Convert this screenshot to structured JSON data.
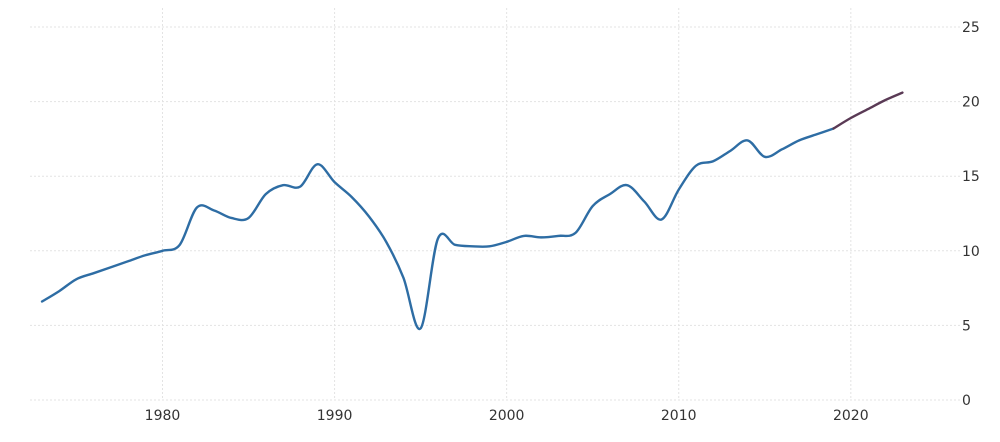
{
  "chart_data": {
    "type": "line",
    "title": "",
    "xlabel": "",
    "ylabel": "",
    "x_ticks": [
      "1980",
      "1990",
      "2000",
      "2010",
      "2020"
    ],
    "y_ticks": [
      "0",
      "5",
      "10",
      "15",
      "20",
      "25"
    ],
    "xlim": [
      1972.3,
      2025.3
    ],
    "ylim": [
      0,
      25
    ],
    "grid": true,
    "series": [
      {
        "color": "#2e6da4",
        "x": [
          1973,
          1974,
          1975,
          1976,
          1977,
          1978,
          1979,
          1980,
          1981,
          1982,
          1983,
          1984,
          1985,
          1986,
          1987,
          1988,
          1989,
          1990,
          1991,
          1992,
          1993,
          1994,
          1995,
          1996,
          1997,
          1998,
          1999,
          2000,
          2001,
          2002,
          2003,
          2004,
          2005,
          2006,
          2007,
          2008,
          2009,
          2010,
          2011,
          2012,
          2013,
          2014,
          2015,
          2016,
          2017,
          2018,
          2019
        ],
        "y": [
          6.6,
          7.3,
          8.1,
          8.5,
          8.9,
          9.3,
          9.7,
          10.0,
          10.4,
          12.9,
          12.7,
          12.2,
          12.2,
          13.8,
          14.4,
          14.3,
          15.8,
          14.6,
          13.6,
          12.3,
          10.6,
          8.2,
          4.8,
          10.8,
          10.4,
          10.3,
          10.3,
          10.6,
          11.0,
          10.9,
          11.0,
          11.2,
          13.0,
          13.8,
          14.4,
          13.3,
          12.1,
          14.1,
          15.7,
          16.0,
          16.7,
          17.4,
          16.3,
          16.8,
          17.4,
          17.8,
          18.2
        ]
      },
      {
        "color": "#5a3a55",
        "x": [
          2019,
          2020,
          2021,
          2022,
          2023
        ],
        "y": [
          18.2,
          18.9,
          19.5,
          20.1,
          20.6
        ]
      }
    ]
  }
}
